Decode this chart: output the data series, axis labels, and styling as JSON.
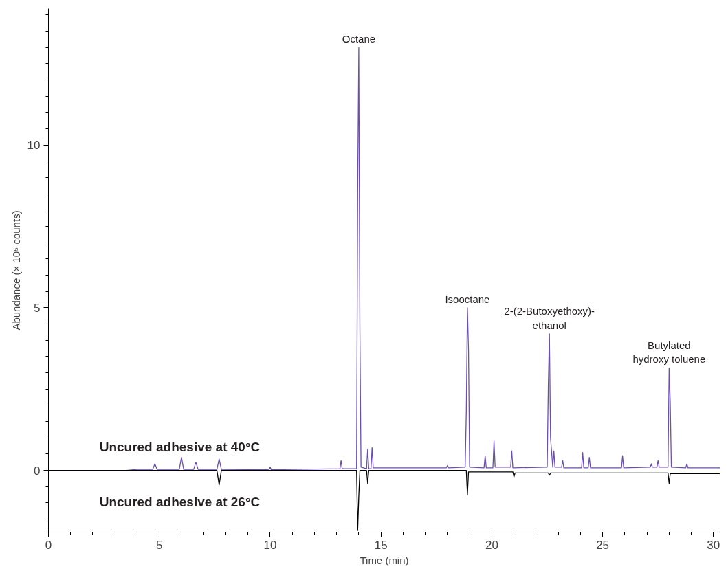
{
  "chart_data": {
    "type": "line",
    "xlabel": "Time (min)",
    "ylabel": "Abundance (× 10⁵ counts)",
    "xlim": [
      0,
      30.3
    ],
    "ylim": [
      -1.9,
      14.2
    ],
    "xticks": [
      0,
      5,
      10,
      15,
      20,
      25,
      30
    ],
    "yticks": [
      0,
      5,
      10
    ],
    "grid": false,
    "legend": false,
    "marker": "none",
    "line_style": "solid",
    "series": [
      {
        "name": "Uncured adhesive at 40°C",
        "color": "#6a4fb0",
        "x": [
          0,
          3.5,
          4.0,
          4.7,
          4.8,
          4.9,
          5.9,
          6.0,
          6.1,
          6.55,
          6.65,
          6.75,
          7.6,
          7.7,
          7.8,
          9.95,
          10.0,
          10.05,
          13.15,
          13.2,
          13.25,
          13.9,
          13.95,
          14.0,
          14.05,
          14.1,
          14.35,
          14.4,
          14.45,
          14.55,
          14.6,
          14.65,
          17.95,
          18.0,
          18.05,
          18.8,
          18.85,
          18.9,
          18.95,
          19.0,
          19.65,
          19.7,
          19.75,
          20.05,
          20.1,
          20.15,
          20.85,
          20.9,
          20.95,
          22.5,
          22.55,
          22.6,
          22.65,
          22.75,
          22.8,
          22.85,
          23.15,
          23.2,
          23.25,
          24.05,
          24.1,
          24.15,
          24.35,
          24.4,
          24.45,
          25.85,
          25.9,
          25.95,
          27.15,
          27.2,
          27.25,
          27.45,
          27.5,
          27.55,
          27.95,
          28.0,
          28.05,
          28.1,
          28.75,
          28.8,
          28.85,
          30.3
        ],
        "values": [
          0,
          0,
          0.03,
          0.03,
          0.2,
          0.03,
          0.03,
          0.4,
          0.03,
          0.03,
          0.25,
          0.03,
          0.03,
          0.35,
          0.03,
          0.02,
          0.1,
          0.02,
          0.05,
          0.3,
          0.05,
          0.05,
          8.6,
          13.0,
          4.3,
          0.1,
          0.05,
          0.65,
          0.05,
          0.05,
          0.7,
          0.08,
          0.08,
          0.15,
          0.08,
          0.1,
          1.8,
          5.0,
          3.7,
          0.1,
          0.08,
          0.45,
          0.08,
          0.08,
          0.9,
          0.1,
          0.1,
          0.6,
          0.08,
          0.1,
          2.6,
          4.2,
          1.0,
          0.1,
          0.6,
          0.1,
          0.1,
          0.3,
          0.08,
          0.08,
          0.55,
          0.08,
          0.08,
          0.4,
          0.08,
          0.08,
          0.45,
          0.08,
          0.1,
          0.2,
          0.1,
          0.1,
          0.3,
          0.1,
          0.1,
          3.15,
          2.1,
          0.1,
          0.08,
          0.2,
          0.08,
          0.08
        ]
      },
      {
        "name": "Uncured adhesive at 26°C",
        "color": "#000000",
        "x": [
          0,
          7.6,
          7.7,
          7.8,
          13.9,
          13.95,
          14.0,
          14.05,
          14.35,
          14.4,
          14.45,
          18.85,
          18.9,
          18.95,
          20.0,
          20.95,
          21.0,
          21.05,
          22.55,
          22.6,
          22.65,
          27.95,
          28.0,
          28.05,
          30.3
        ],
        "values": [
          0,
          0,
          -0.45,
          0,
          0,
          -1.85,
          -0.8,
          0,
          0,
          -0.4,
          0,
          0,
          -0.75,
          -0.05,
          -0.05,
          -0.05,
          -0.2,
          -0.08,
          -0.08,
          -0.15,
          -0.08,
          -0.08,
          -0.4,
          -0.1,
          -0.1
        ]
      }
    ],
    "annotations": [
      {
        "text": "Octane",
        "x": 14.0,
        "y": 13.0
      },
      {
        "text": "Isooctane",
        "x": 18.9,
        "y": 5.0
      },
      {
        "text": "2-(2-Butoxyethoxy)-\nethanol",
        "x": 22.6,
        "y": 4.2
      },
      {
        "text": "Butylated\nhydroxy toluene",
        "x": 28.0,
        "y": 3.15
      }
    ]
  }
}
